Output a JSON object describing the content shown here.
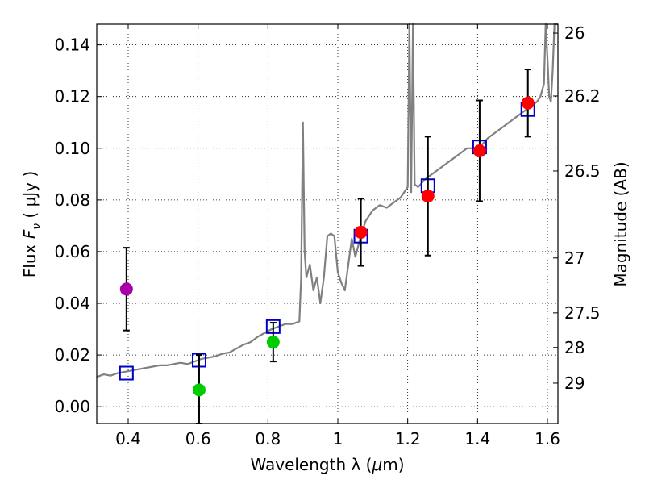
{
  "chart_data": {
    "type": "scatter",
    "xlabel_prefix": "Wavelength  λ (",
    "xlabel_unit": "μ",
    "xlabel_suffix": "m)",
    "ylabel_prefix": "Flux  ",
    "ylabel_symbol": "F",
    "ylabel_sub": "ν",
    "ylabel_suffix": "  ( μJy )",
    "y2label": "Magnitude (AB)",
    "xlim": [
      0.31,
      1.63
    ],
    "ylim": [
      -0.0065,
      0.148
    ],
    "grid": true,
    "x_ticks": [
      0.4,
      0.6,
      0.8,
      1.0,
      1.2,
      1.4,
      1.6
    ],
    "x_tick_labels": [
      "0.4",
      "0.6",
      "0.8",
      "1",
      "1.2",
      "1.4",
      "1.6"
    ],
    "y_ticks": [
      0.0,
      0.02,
      0.04,
      0.06,
      0.08,
      0.1,
      0.12,
      0.14
    ],
    "y_tick_labels": [
      "0.00",
      "0.02",
      "0.04",
      "0.06",
      "0.08",
      "0.10",
      "0.12",
      "0.14"
    ],
    "mag_ticks": [
      26,
      26.2,
      26.5,
      27,
      27.5,
      28,
      29
    ],
    "mag_tick_labels": [
      "26",
      "26.2",
      "26.5",
      "27",
      "27.5",
      "28",
      "29"
    ],
    "colors": {
      "spectrum": "#808080",
      "model": "#0000cc",
      "error": "#000000",
      "purple": "#aa00aa",
      "green": "#00cc00",
      "red": "#ff0000"
    },
    "series": [
      {
        "name": "model spectrum",
        "kind": "line",
        "x": [
          0.31,
          0.33,
          0.35,
          0.37,
          0.39,
          0.41,
          0.43,
          0.45,
          0.47,
          0.49,
          0.51,
          0.53,
          0.55,
          0.57,
          0.59,
          0.61,
          0.63,
          0.65,
          0.67,
          0.69,
          0.71,
          0.73,
          0.75,
          0.77,
          0.79,
          0.81,
          0.83,
          0.85,
          0.87,
          0.89,
          0.895,
          0.9,
          0.905,
          0.91,
          0.92,
          0.93,
          0.94,
          0.95,
          0.96,
          0.97,
          0.98,
          0.99,
          1.0,
          1.01,
          1.02,
          1.03,
          1.04,
          1.05,
          1.06,
          1.07,
          1.08,
          1.09,
          1.1,
          1.12,
          1.14,
          1.16,
          1.18,
          1.2,
          1.205,
          1.21,
          1.215,
          1.22,
          1.23,
          1.25,
          1.27,
          1.29,
          1.31,
          1.33,
          1.35,
          1.37,
          1.39,
          1.41,
          1.43,
          1.45,
          1.47,
          1.49,
          1.51,
          1.53,
          1.55,
          1.57,
          1.58,
          1.59,
          1.595,
          1.6,
          1.605,
          1.61,
          1.615,
          1.62,
          1.63
        ],
        "y": [
          0.0115,
          0.0125,
          0.012,
          0.013,
          0.0135,
          0.014,
          0.0145,
          0.015,
          0.0155,
          0.016,
          0.016,
          0.0165,
          0.017,
          0.0165,
          0.0175,
          0.0185,
          0.019,
          0.0195,
          0.0205,
          0.021,
          0.0225,
          0.024,
          0.025,
          0.027,
          0.0285,
          0.03,
          0.031,
          0.032,
          0.032,
          0.033,
          0.05,
          0.11,
          0.06,
          0.05,
          0.055,
          0.045,
          0.05,
          0.04,
          0.05,
          0.066,
          0.067,
          0.066,
          0.052,
          0.048,
          0.045,
          0.055,
          0.065,
          0.058,
          0.063,
          0.068,
          0.072,
          0.074,
          0.076,
          0.078,
          0.077,
          0.079,
          0.081,
          0.085,
          0.15,
          0.083,
          0.15,
          0.086,
          0.085,
          0.088,
          0.09,
          0.092,
          0.094,
          0.096,
          0.098,
          0.1,
          0.1,
          0.101,
          0.104,
          0.106,
          0.108,
          0.11,
          0.112,
          0.114,
          0.116,
          0.118,
          0.12,
          0.125,
          0.15,
          0.135,
          0.12,
          0.118,
          0.13,
          0.15,
          0.15
        ]
      },
      {
        "name": "model photometry",
        "kind": "square",
        "x": [
          0.395,
          0.603,
          0.815,
          1.066,
          1.258,
          1.406,
          1.544
        ],
        "y": [
          0.013,
          0.018,
          0.031,
          0.066,
          0.0855,
          0.1005,
          0.115
        ]
      },
      {
        "name": "observed photometry",
        "kind": "errorbar",
        "x": [
          0.395,
          0.603,
          0.815,
          1.066,
          1.258,
          1.406,
          1.544
        ],
        "y": [
          0.0455,
          0.0065,
          0.025,
          0.0675,
          0.0815,
          0.099,
          0.1175
        ],
        "err": [
          0.016,
          0.0135,
          0.0075,
          0.013,
          0.023,
          0.0195,
          0.013
        ],
        "color_keys": [
          "purple",
          "green",
          "green",
          "red",
          "red",
          "red",
          "red"
        ]
      }
    ]
  }
}
